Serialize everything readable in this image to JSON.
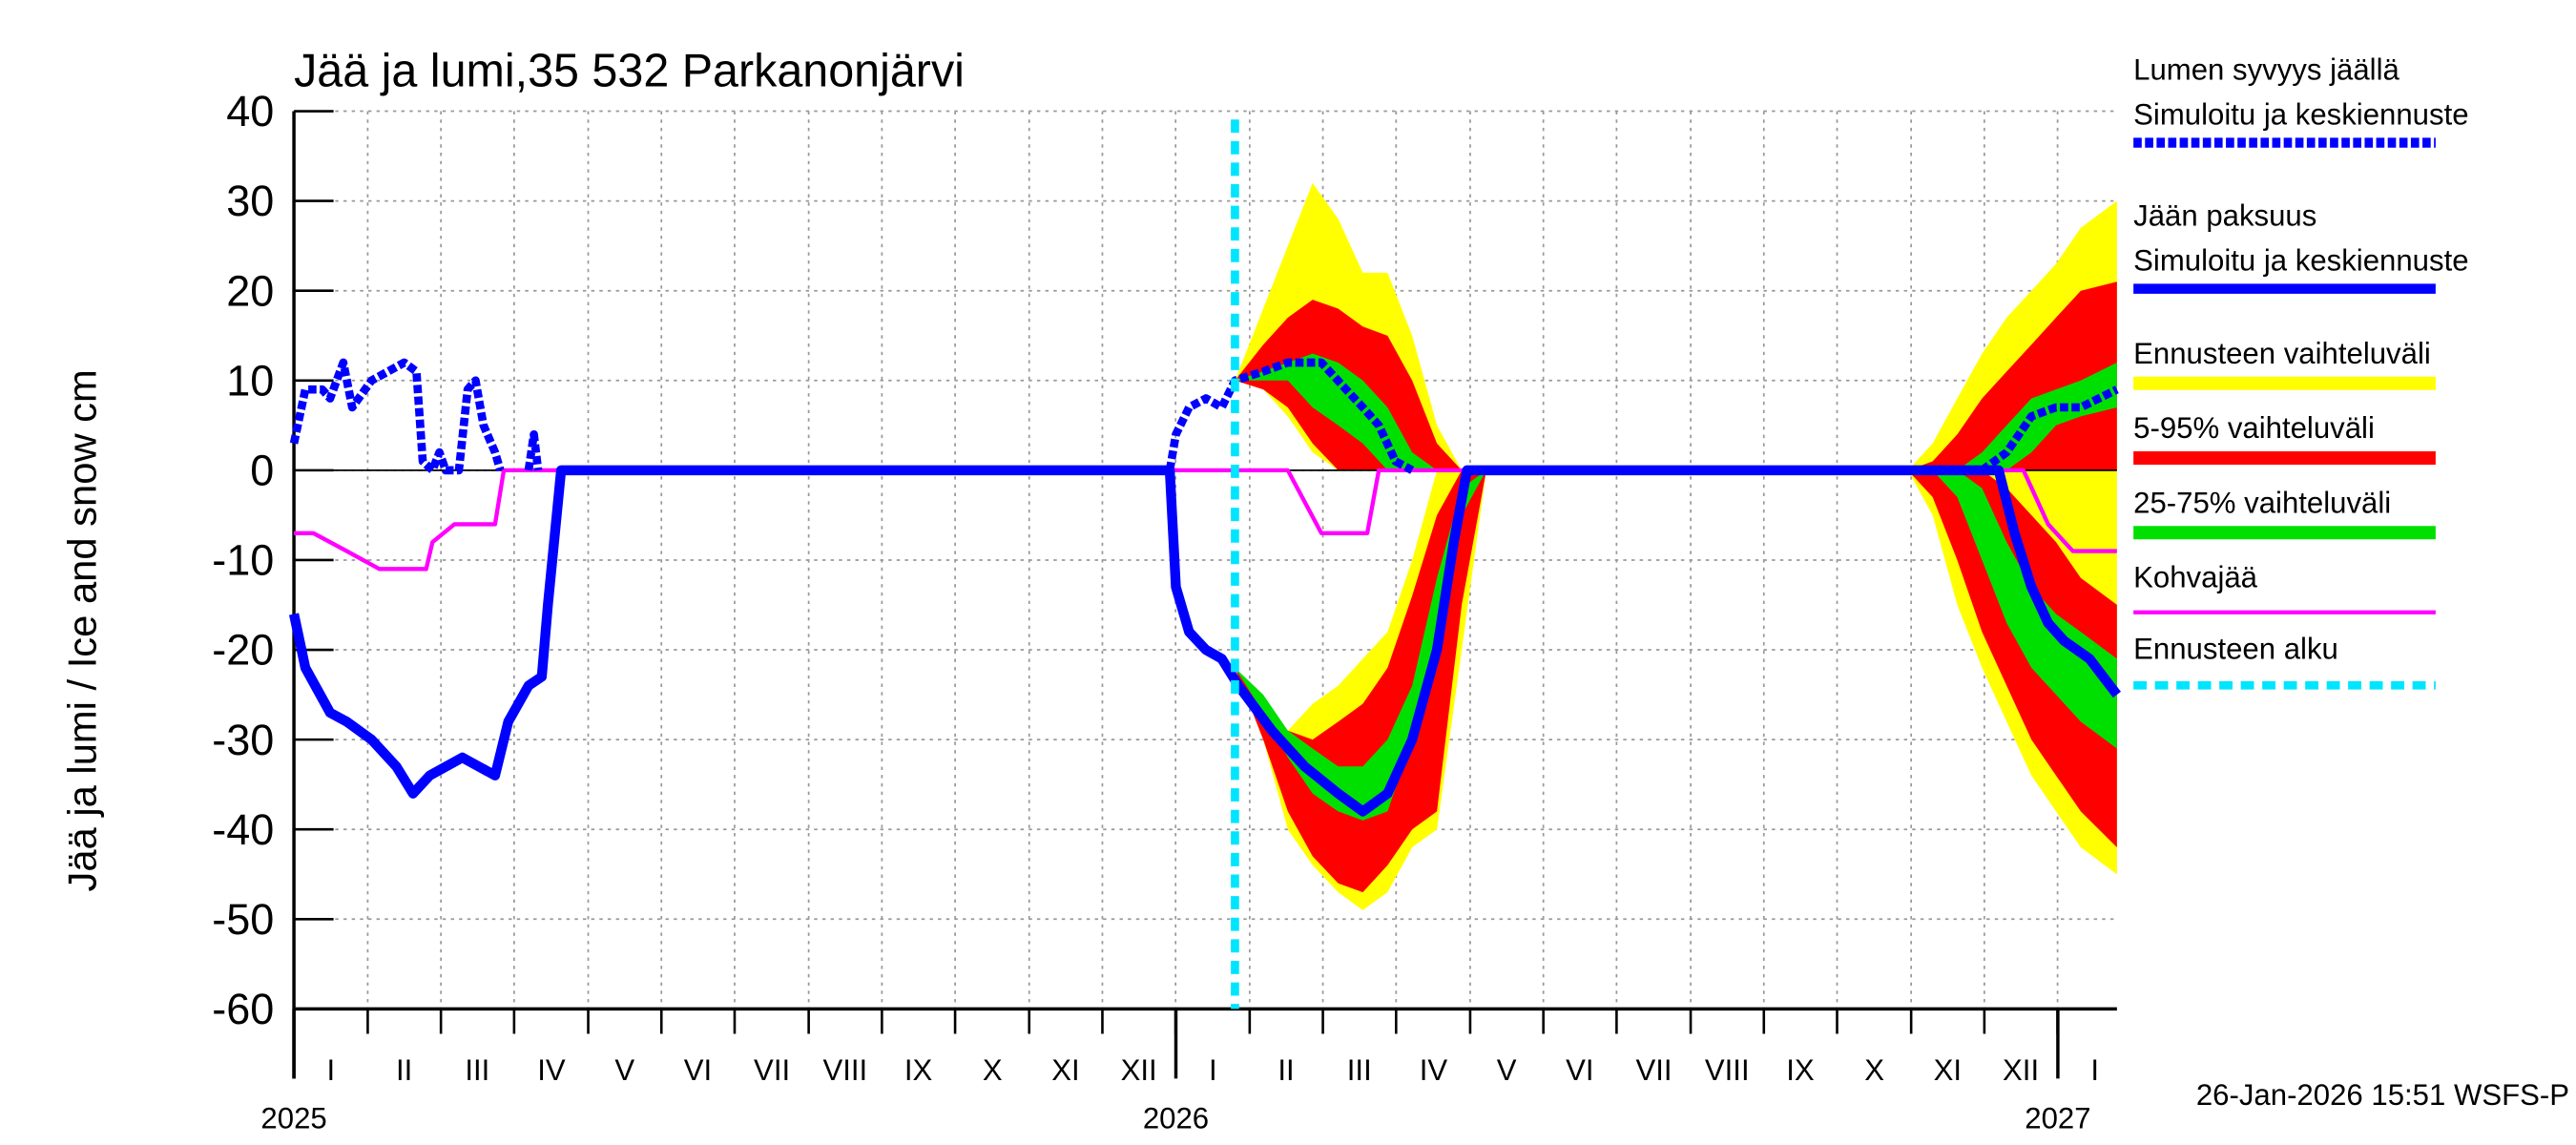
{
  "chart_data": {
    "type": "ice-forecast",
    "title": "Jää ja lumi,35 532 Parkanonjärvi",
    "y_label": "Jää ja lumi / Ice and snow    cm",
    "footer": "26-Jan-2026 15:51 WSFS-P",
    "xlim": [
      2025,
      2027.067
    ],
    "ylim": [
      -60,
      40
    ],
    "yticks": [
      -60,
      -50,
      -40,
      -30,
      -20,
      -10,
      0,
      10,
      20,
      30,
      40
    ],
    "year_ticks": [
      2025,
      2026,
      2027
    ],
    "xticks": [
      {
        "value": 2025.042,
        "label": "I"
      },
      {
        "value": 2025.125,
        "label": "II"
      },
      {
        "value": 2025.208,
        "label": "III"
      },
      {
        "value": 2025.292,
        "label": "IV"
      },
      {
        "value": 2025.375,
        "label": "V"
      },
      {
        "value": 2025.458,
        "label": "VI"
      },
      {
        "value": 2025.542,
        "label": "VII"
      },
      {
        "value": 2025.625,
        "label": "VIII"
      },
      {
        "value": 2025.708,
        "label": "IX"
      },
      {
        "value": 2025.792,
        "label": "X"
      },
      {
        "value": 2025.875,
        "label": "XI"
      },
      {
        "value": 2025.958,
        "label": "XII"
      },
      {
        "value": 2026.042,
        "label": "I"
      },
      {
        "value": 2026.125,
        "label": "II"
      },
      {
        "value": 2026.208,
        "label": "III"
      },
      {
        "value": 2026.292,
        "label": "IV"
      },
      {
        "value": 2026.375,
        "label": "V"
      },
      {
        "value": 2026.458,
        "label": "VI"
      },
      {
        "value": 2026.542,
        "label": "VII"
      },
      {
        "value": 2026.625,
        "label": "VIII"
      },
      {
        "value": 2026.708,
        "label": "IX"
      },
      {
        "value": 2026.792,
        "label": "X"
      },
      {
        "value": 2026.875,
        "label": "XI"
      },
      {
        "value": 2026.958,
        "label": "XII"
      },
      {
        "value": 2027.042,
        "label": "I"
      }
    ],
    "grid": true,
    "bands": [
      {
        "name": "Ennusteen vaihteluväli",
        "color": "#ffff00",
        "pieces": [
          {
            "x": [
              2026.067,
              2026.099,
              2026.127,
              2026.155,
              2026.184,
              2026.212,
              2026.24,
              2026.268,
              2026.296,
              2026.324,
              2026.352
            ],
            "snow_high": [
              10,
              18,
              25,
              32,
              28,
              22,
              22,
              15,
              5,
              0,
              0
            ],
            "snow_low": [
              10,
              9,
              6,
              2,
              0,
              0,
              0,
              0,
              0,
              0,
              0
            ],
            "ice_high": [
              -22,
              -26,
              -29,
              -26,
              -24,
              -21,
              -18,
              -10,
              0,
              0,
              0
            ],
            "ice_low": [
              -22,
              -30,
              -40,
              -44,
              -47,
              -49,
              -47,
              -42,
              -40,
              -20,
              0
            ]
          },
          {
            "x": [
              2026.83,
              2026.858,
              2026.886,
              2026.914,
              2026.942,
              2026.97,
              2026.998,
              2027.026,
              2027.067
            ],
            "snow_high": [
              0,
              3,
              8,
              13,
              17,
              20,
              23,
              27,
              30
            ],
            "snow_low": [
              0,
              0,
              0,
              0,
              0,
              0,
              0,
              0,
              0
            ],
            "ice_high": [
              0,
              0,
              0,
              0,
              0,
              0,
              0,
              0,
              0
            ],
            "ice_low": [
              0,
              -5,
              -15,
              -22,
              -28,
              -34,
              -38,
              -42,
              -45
            ]
          }
        ]
      },
      {
        "name": "5-95% vaihteluväli",
        "color": "#ff0000",
        "pieces": [
          {
            "x": [
              2026.067,
              2026.099,
              2026.127,
              2026.155,
              2026.184,
              2026.212,
              2026.24,
              2026.268,
              2026.296,
              2026.324,
              2026.352
            ],
            "snow_high": [
              10,
              14,
              17,
              19,
              18,
              16,
              15,
              10,
              3,
              0,
              0
            ],
            "snow_low": [
              10,
              9,
              7,
              3,
              0,
              0,
              0,
              0,
              0,
              0,
              0
            ],
            "ice_high": [
              -22,
              -26,
              -29,
              -30,
              -28,
              -26,
              -22,
              -14,
              -5,
              0,
              0
            ],
            "ice_low": [
              -22,
              -30,
              -38,
              -43,
              -46,
              -47,
              -44,
              -40,
              -38,
              -15,
              0
            ]
          },
          {
            "x": [
              2026.83,
              2026.858,
              2026.886,
              2026.914,
              2026.942,
              2026.97,
              2026.998,
              2027.026,
              2027.067
            ],
            "snow_high": [
              0,
              1,
              4,
              8,
              11,
              14,
              17,
              20,
              21
            ],
            "snow_low": [
              0,
              0,
              0,
              0,
              0,
              0,
              0,
              0,
              0
            ],
            "ice_high": [
              0,
              0,
              0,
              0,
              -2,
              -5,
              -8,
              -12,
              -15
            ],
            "ice_low": [
              0,
              -3,
              -10,
              -18,
              -24,
              -30,
              -34,
              -38,
              -42
            ]
          }
        ]
      },
      {
        "name": "25-75% vaihteluväli",
        "color": "#00e000",
        "pieces": [
          {
            "x": [
              2026.067,
              2026.099,
              2026.127,
              2026.155,
              2026.184,
              2026.212,
              2026.24,
              2026.268,
              2026.296,
              2026.324,
              2026.352
            ],
            "snow_high": [
              10,
              11,
              12,
              13,
              12,
              10,
              7,
              2,
              0,
              0,
              0
            ],
            "snow_low": [
              10,
              10,
              10,
              7,
              5,
              3,
              0,
              0,
              0,
              0,
              0
            ],
            "ice_high": [
              -22,
              -25,
              -29,
              -31,
              -33,
              -33,
              -30,
              -24,
              -12,
              -2,
              0
            ],
            "ice_low": [
              -22,
              -27,
              -32,
              -36,
              -38,
              -39,
              -38,
              -30,
              -20,
              -5,
              0
            ]
          },
          {
            "x": [
              2026.83,
              2026.858,
              2026.886,
              2026.914,
              2026.942,
              2026.97,
              2026.998,
              2027.026,
              2027.067
            ],
            "snow_high": [
              0,
              0,
              0,
              2,
              5,
              8,
              9,
              10,
              12
            ],
            "snow_low": [
              0,
              0,
              0,
              0,
              0,
              2,
              5,
              6,
              7
            ],
            "ice_high": [
              0,
              0,
              0,
              -2,
              -8,
              -13,
              -16,
              -18,
              -21
            ],
            "ice_low": [
              0,
              0,
              -3,
              -10,
              -17,
              -22,
              -25,
              -28,
              -31
            ]
          }
        ]
      }
    ],
    "series": [
      {
        "name": "Lumen syvyys jäällä",
        "subname": "Simuloitu ja keskiennuste",
        "color": "#0000ff",
        "dashed": true,
        "x": [
          2025.0,
          2025.013,
          2025.032,
          2025.041,
          2025.056,
          2025.066,
          2025.088,
          2025.125,
          2025.139,
          2025.146,
          2025.157,
          2025.165,
          2025.172,
          2025.187,
          2025.197,
          2025.206,
          2025.215,
          2025.228,
          2025.234,
          2025.247,
          2025.266,
          2025.272,
          2025.277,
          2025.603,
          2025.993,
          2026.0,
          2026.015,
          2026.034,
          2026.052,
          2026.067,
          2026.099,
          2026.127,
          2026.165,
          2026.193,
          2026.212,
          2026.23,
          2026.249,
          2026.268,
          2026.539,
          2026.914,
          2026.942,
          2026.97,
          2026.998,
          2027.026,
          2027.067
        ],
        "values": [
          3,
          9,
          9,
          8,
          12,
          7,
          10,
          12,
          11,
          1,
          0,
          2,
          0,
          0,
          9,
          10,
          5,
          2,
          0,
          null,
          0,
          4,
          0,
          null,
          0,
          4,
          7,
          8,
          7,
          10,
          11,
          12,
          12,
          9,
          7,
          5,
          1,
          0,
          null,
          0,
          2,
          6,
          7,
          7,
          9
        ]
      },
      {
        "name": "Jään paksuus",
        "subname": "Simuloitu ja keskiennuste",
        "color": "#0000ff",
        "dashed": false,
        "x": [
          2025.0,
          2025.013,
          2025.041,
          2025.06,
          2025.088,
          2025.116,
          2025.135,
          2025.154,
          2025.191,
          2025.228,
          2025.243,
          2025.266,
          2025.281,
          2025.288,
          2025.303,
          2025.993,
          2026.0,
          2026.015,
          2026.034,
          2026.052,
          2026.071,
          2026.109,
          2026.146,
          2026.184,
          2026.212,
          2026.24,
          2026.268,
          2026.296,
          2026.315,
          2026.33,
          2026.933,
          2026.951,
          2026.97,
          2026.989,
          2027.007,
          2027.036,
          2027.067
        ],
        "values": [
          -16,
          -22,
          -27,
          -28,
          -30,
          -33,
          -36,
          -34,
          -32,
          -34,
          -28,
          -24,
          -23,
          -15,
          0,
          0,
          -13,
          -18,
          -20,
          -21,
          -24,
          -29,
          -33,
          -36,
          -38,
          -36,
          -30,
          -20,
          -8,
          0,
          0,
          -7,
          -13,
          -17,
          -19,
          -21,
          -25
        ]
      },
      {
        "name": "Kohvajää",
        "color": "#ff00ff",
        "dashed": false,
        "x": [
          2025.0,
          2025.022,
          2025.06,
          2025.097,
          2025.15,
          2025.157,
          2025.182,
          2025.228,
          2025.238,
          2026.127,
          2026.165,
          2026.217,
          2026.23,
          2026.961,
          2026.989,
          2027.017,
          2027.067
        ],
        "values": [
          -7,
          -7,
          -9,
          -11,
          -11,
          -8,
          -6,
          -6,
          0,
          0,
          -7,
          -7,
          0,
          0,
          -6,
          -9,
          -9
        ]
      }
    ],
    "forecast_start": {
      "name": "Ennusteen alku",
      "color": "#00e5ff",
      "x": 2026.067
    }
  }
}
